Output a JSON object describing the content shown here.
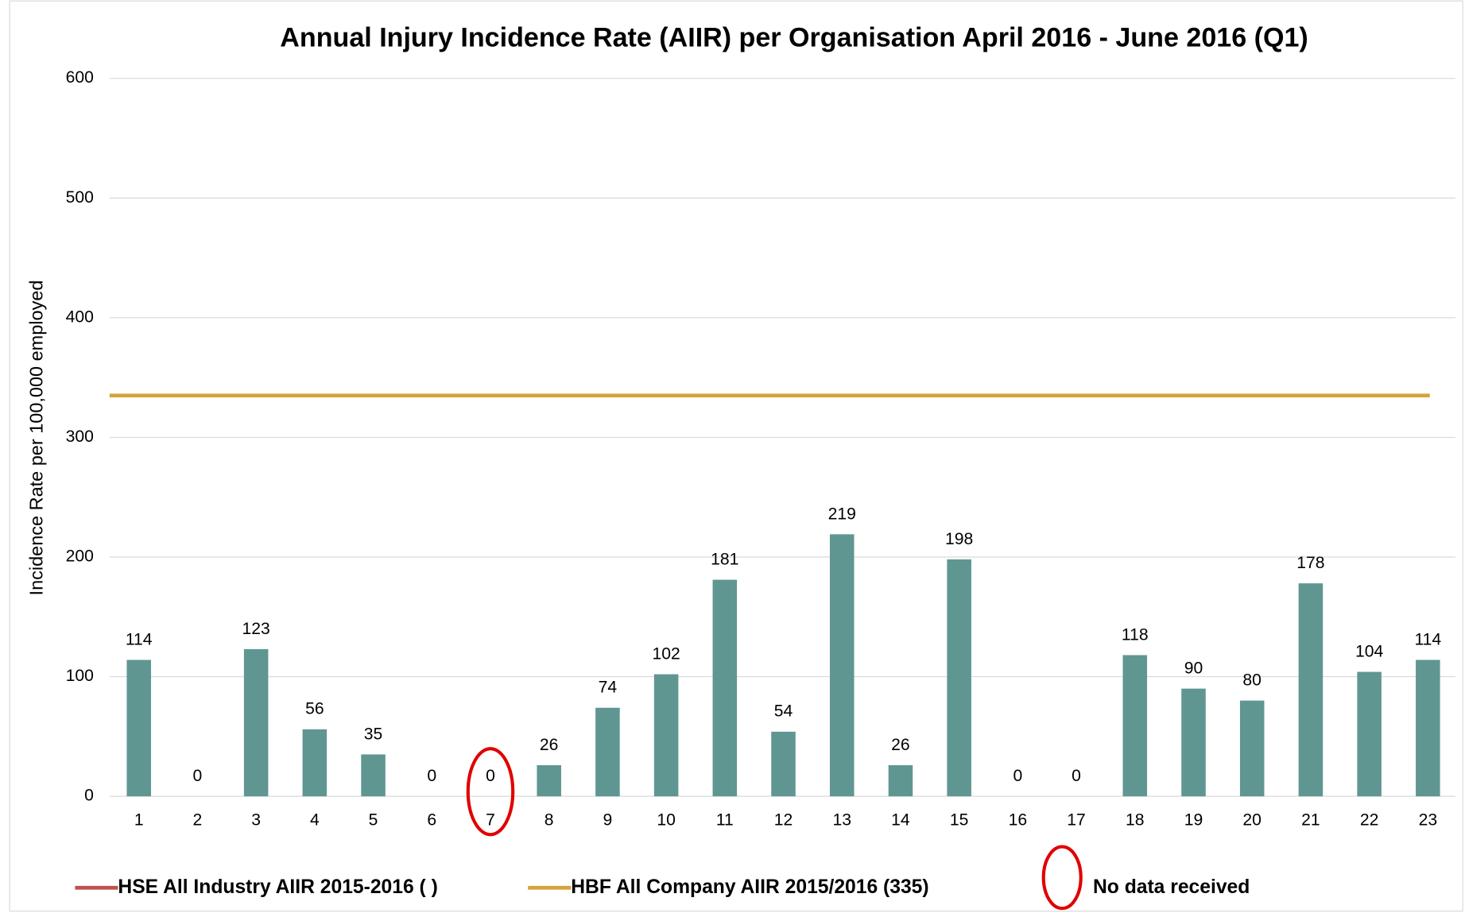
{
  "chart_data": {
    "type": "bar",
    "title": "Annual Injury Incidence Rate (AIIR) per Organisation April 2016 - June 2016 (Q1)",
    "y_label": "Incidence Rate per 100,000 employed",
    "categories": [
      "1",
      "2",
      "3",
      "4",
      "5",
      "6",
      "7",
      "8",
      "9",
      "10",
      "11",
      "12",
      "13",
      "14",
      "15",
      "16",
      "17",
      "18",
      "19",
      "20",
      "21",
      "22",
      "23"
    ],
    "values": [
      114,
      0,
      123,
      56,
      35,
      0,
      0,
      26,
      74,
      102,
      181,
      54,
      219,
      26,
      198,
      0,
      0,
      118,
      90,
      80,
      178,
      104,
      114
    ],
    "color": "#5f9692",
    "ylim": [
      0,
      600
    ],
    "yticks": [
      0,
      100,
      200,
      300,
      400,
      500,
      600
    ],
    "grid": true,
    "reference_lines": [
      {
        "name": "HSE All Industry AIIR 2015-2016 ( )",
        "color": "#c0504d"
      },
      {
        "name": "HBF All Company AIIR 2015/2016 (335)",
        "color": "#d4a33c",
        "value": 335
      }
    ],
    "annotation": {
      "text": "No data received",
      "category": "7",
      "color": "#e00000"
    }
  }
}
